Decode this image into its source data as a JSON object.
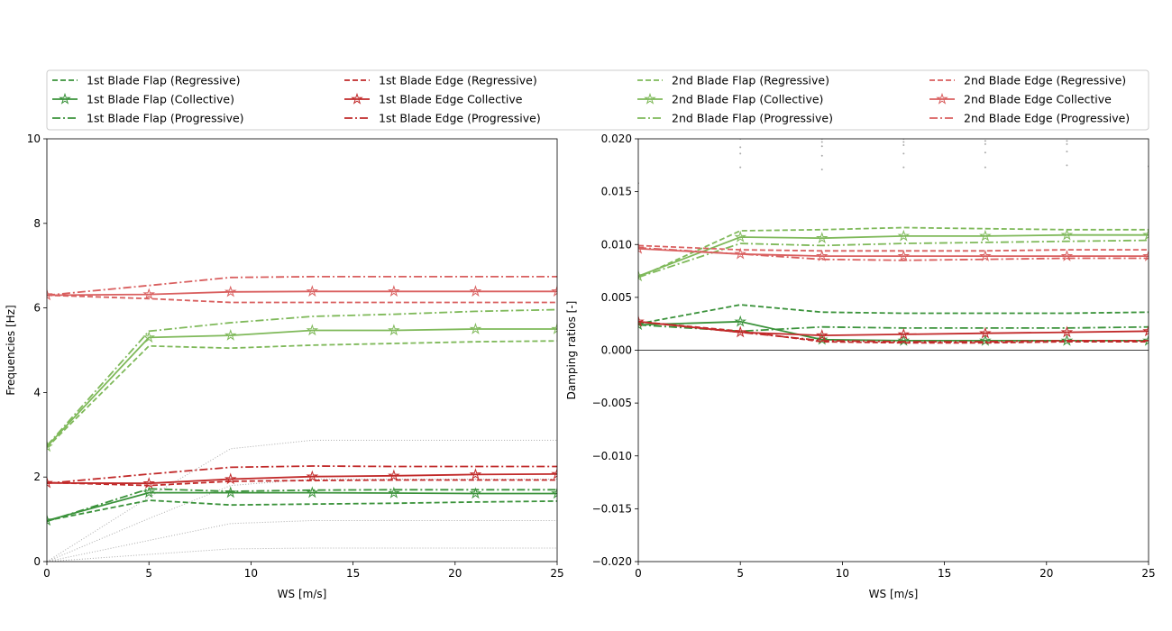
{
  "chart_data": [
    {
      "type": "line",
      "xlabel": "WS [m/s]",
      "ylabel": "Frequencies [Hz]",
      "xlim": [
        0,
        25
      ],
      "ylim": [
        0,
        10
      ],
      "x_ticks": [
        0,
        5,
        10,
        15,
        20,
        25
      ],
      "x_tick_labels": [
        "0",
        "5",
        "10",
        "15",
        "20",
        "25"
      ],
      "y_ticks": [
        0,
        2,
        4,
        6,
        8,
        10
      ],
      "y_tick_labels": [
        "0",
        "2",
        "4",
        "6",
        "8",
        "10"
      ],
      "grid": false,
      "x": [
        0,
        5,
        9,
        13,
        17,
        21,
        25
      ],
      "series": [
        {
          "name": "1st Blade Flap (Regressive)",
          "color": "#3a923a",
          "style": "dashed",
          "values": [
            0.97,
            1.45,
            1.34,
            1.36,
            1.38,
            1.41,
            1.43
          ]
        },
        {
          "name": "1st Blade Flap (Collective)",
          "color": "#3a923a",
          "style": "solid-star",
          "values": [
            0.97,
            1.63,
            1.63,
            1.63,
            1.62,
            1.61,
            1.61
          ]
        },
        {
          "name": "1st Blade Flap (Progressive)",
          "color": "#3a923a",
          "style": "dashdot",
          "values": [
            0.95,
            1.72,
            1.66,
            1.69,
            1.7,
            1.7,
            1.7
          ]
        },
        {
          "name": "1st Blade Edge (Regressive)",
          "color": "#c12a2a",
          "style": "dashed",
          "values": [
            1.87,
            1.8,
            1.9,
            1.92,
            1.93,
            1.93,
            1.93
          ]
        },
        {
          "name": "1st Blade Edge Collective",
          "color": "#c12a2a",
          "style": "solid-star",
          "values": [
            1.86,
            1.85,
            1.95,
            2.01,
            2.03,
            2.06,
            2.07
          ]
        },
        {
          "name": "1st Blade Edge (Progressive)",
          "color": "#c12a2a",
          "style": "dashdot",
          "values": [
            1.85,
            2.07,
            2.23,
            2.26,
            2.25,
            2.25,
            2.25
          ]
        },
        {
          "name": "2nd Blade Flap (Regressive)",
          "color": "#7fb95a",
          "style": "dashed",
          "values": [
            2.7,
            5.1,
            5.05,
            5.12,
            5.16,
            5.2,
            5.22
          ]
        },
        {
          "name": "2nd Blade Flap (Collective)",
          "color": "#7fb95a",
          "style": "solid-star",
          "values": [
            2.72,
            5.3,
            5.35,
            5.47,
            5.47,
            5.5,
            5.5
          ]
        },
        {
          "name": "2nd Blade Flap (Progressive)",
          "color": "#7fb95a",
          "style": "dashdot",
          "values": [
            2.74,
            5.45,
            5.65,
            5.8,
            5.85,
            5.92,
            5.96
          ]
        },
        {
          "name": "2nd Blade Edge (Regressive)",
          "color": "#d95f5f",
          "style": "dashed",
          "values": [
            6.3,
            6.22,
            6.13,
            6.13,
            6.13,
            6.13,
            6.13
          ]
        },
        {
          "name": "2nd Blade Edge Collective",
          "color": "#d95f5f",
          "style": "solid-star",
          "values": [
            6.3,
            6.32,
            6.38,
            6.39,
            6.39,
            6.39,
            6.39
          ]
        },
        {
          "name": "2nd Blade Edge (Progressive)",
          "color": "#d95f5f",
          "style": "dashdot",
          "values": [
            6.3,
            6.53,
            6.72,
            6.74,
            6.74,
            6.74,
            6.74
          ]
        }
      ],
      "background_lines": [
        {
          "values": [
            0.0,
            1.52,
            2.67,
            2.87,
            2.87,
            2.87,
            2.87
          ]
        },
        {
          "values": [
            0.0,
            1.02,
            1.8,
            1.95,
            1.95,
            1.95,
            1.95
          ]
        },
        {
          "values": [
            0.0,
            0.5,
            0.9,
            0.97,
            0.97,
            0.97,
            0.97
          ]
        },
        {
          "values": [
            0.0,
            0.17,
            0.3,
            0.32,
            0.32,
            0.32,
            0.32
          ]
        }
      ]
    },
    {
      "type": "line",
      "xlabel": "WS [m/s]",
      "ylabel": "Damping ratios [-]",
      "xlim": [
        0,
        25
      ],
      "ylim": [
        -0.02,
        0.02
      ],
      "x_ticks": [
        0,
        5,
        10,
        15,
        20,
        25
      ],
      "x_tick_labels": [
        "0",
        "5",
        "10",
        "15",
        "20",
        "25"
      ],
      "y_ticks": [
        -0.02,
        -0.015,
        -0.01,
        -0.005,
        0.0,
        0.005,
        0.01,
        0.015,
        0.02
      ],
      "y_tick_labels": [
        "−0.020",
        "−0.015",
        "−0.010",
        "−0.005",
        "0.000",
        "0.005",
        "0.010",
        "0.015",
        "0.020"
      ],
      "zero_line": true,
      "grid": false,
      "x": [
        0,
        5,
        9,
        13,
        17,
        21,
        25
      ],
      "series": [
        {
          "name": "1st Blade Flap (Regressive)",
          "color": "#3a923a",
          "style": "dashed",
          "values": [
            0.0025,
            0.0043,
            0.0036,
            0.0035,
            0.0035,
            0.0035,
            0.0036
          ]
        },
        {
          "name": "1st Blade Flap (Collective)",
          "color": "#3a923a",
          "style": "solid-star",
          "values": [
            0.0024,
            0.0027,
            0.001,
            0.0009,
            0.0009,
            0.0009,
            0.0009
          ]
        },
        {
          "name": "1st Blade Flap (Progressive)",
          "color": "#3a923a",
          "style": "dashdot",
          "values": [
            0.0024,
            0.0018,
            0.0022,
            0.0021,
            0.0021,
            0.0021,
            0.0022
          ]
        },
        {
          "name": "1st Blade Edge (Regressive)",
          "color": "#c12a2a",
          "style": "dashed",
          "values": [
            0.0027,
            0.0018,
            0.0008,
            0.0007,
            0.0007,
            0.0008,
            0.0008
          ]
        },
        {
          "name": "1st Blade Edge Collective",
          "color": "#c12a2a",
          "style": "solid-star",
          "values": [
            0.0027,
            0.0017,
            0.0014,
            0.0015,
            0.0016,
            0.0017,
            0.0018
          ]
        },
        {
          "name": "1st Blade Edge (Progressive)",
          "color": "#c12a2a",
          "style": "dashdot",
          "values": [
            0.0027,
            0.0017,
            0.0009,
            0.0008,
            0.0008,
            0.0009,
            0.0009
          ]
        },
        {
          "name": "2nd Blade Flap (Regressive)",
          "color": "#7fb95a",
          "style": "dashed",
          "values": [
            0.0069,
            0.0113,
            0.0114,
            0.0116,
            0.0115,
            0.0114,
            0.0114
          ]
        },
        {
          "name": "2nd Blade Flap (Collective)",
          "color": "#7fb95a",
          "style": "solid-star",
          "values": [
            0.007,
            0.0107,
            0.0106,
            0.0108,
            0.0108,
            0.0109,
            0.0109
          ]
        },
        {
          "name": "2nd Blade Flap (Progressive)",
          "color": "#7fb95a",
          "style": "dashdot",
          "values": [
            0.0069,
            0.0101,
            0.0099,
            0.0101,
            0.0102,
            0.0103,
            0.0104
          ]
        },
        {
          "name": "2nd Blade Edge (Regressive)",
          "color": "#d95f5f",
          "style": "dashed",
          "values": [
            0.0099,
            0.0095,
            0.0094,
            0.0094,
            0.0094,
            0.0095,
            0.0095
          ]
        },
        {
          "name": "2nd Blade Edge Collective",
          "color": "#d95f5f",
          "style": "solid-star",
          "values": [
            0.0096,
            0.0091,
            0.0089,
            0.0089,
            0.0089,
            0.0089,
            0.0089
          ]
        },
        {
          "name": "2nd Blade Edge (Progressive)",
          "color": "#d95f5f",
          "style": "dashdot",
          "values": [
            0.0097,
            0.0091,
            0.0086,
            0.0085,
            0.0086,
            0.0087,
            0.0087
          ]
        }
      ],
      "background_points": [
        {
          "x": 0,
          "y": [
            0.0158
          ]
        },
        {
          "x": 5,
          "y": [
            0.0173,
            0.0186,
            0.0192,
            0.02
          ]
        },
        {
          "x": 9,
          "y": [
            0.0171,
            0.0184,
            0.0193,
            0.0197,
            0.02
          ]
        },
        {
          "x": 13,
          "y": [
            0.0173,
            0.0186,
            0.0194,
            0.0197,
            0.02
          ]
        },
        {
          "x": 17,
          "y": [
            0.0173,
            0.0187,
            0.0195,
            0.0198
          ]
        },
        {
          "x": 21,
          "y": [
            0.0175,
            0.0188,
            0.0195,
            0.0198
          ]
        },
        {
          "x": 25,
          "y": [
            0.0174
          ]
        }
      ]
    }
  ],
  "legend": {
    "placement": "top",
    "columns": 4
  },
  "styles": {
    "background_line_color": "#aaaaaa",
    "axis_color": "#000000",
    "zero_line_color": "#000000"
  }
}
